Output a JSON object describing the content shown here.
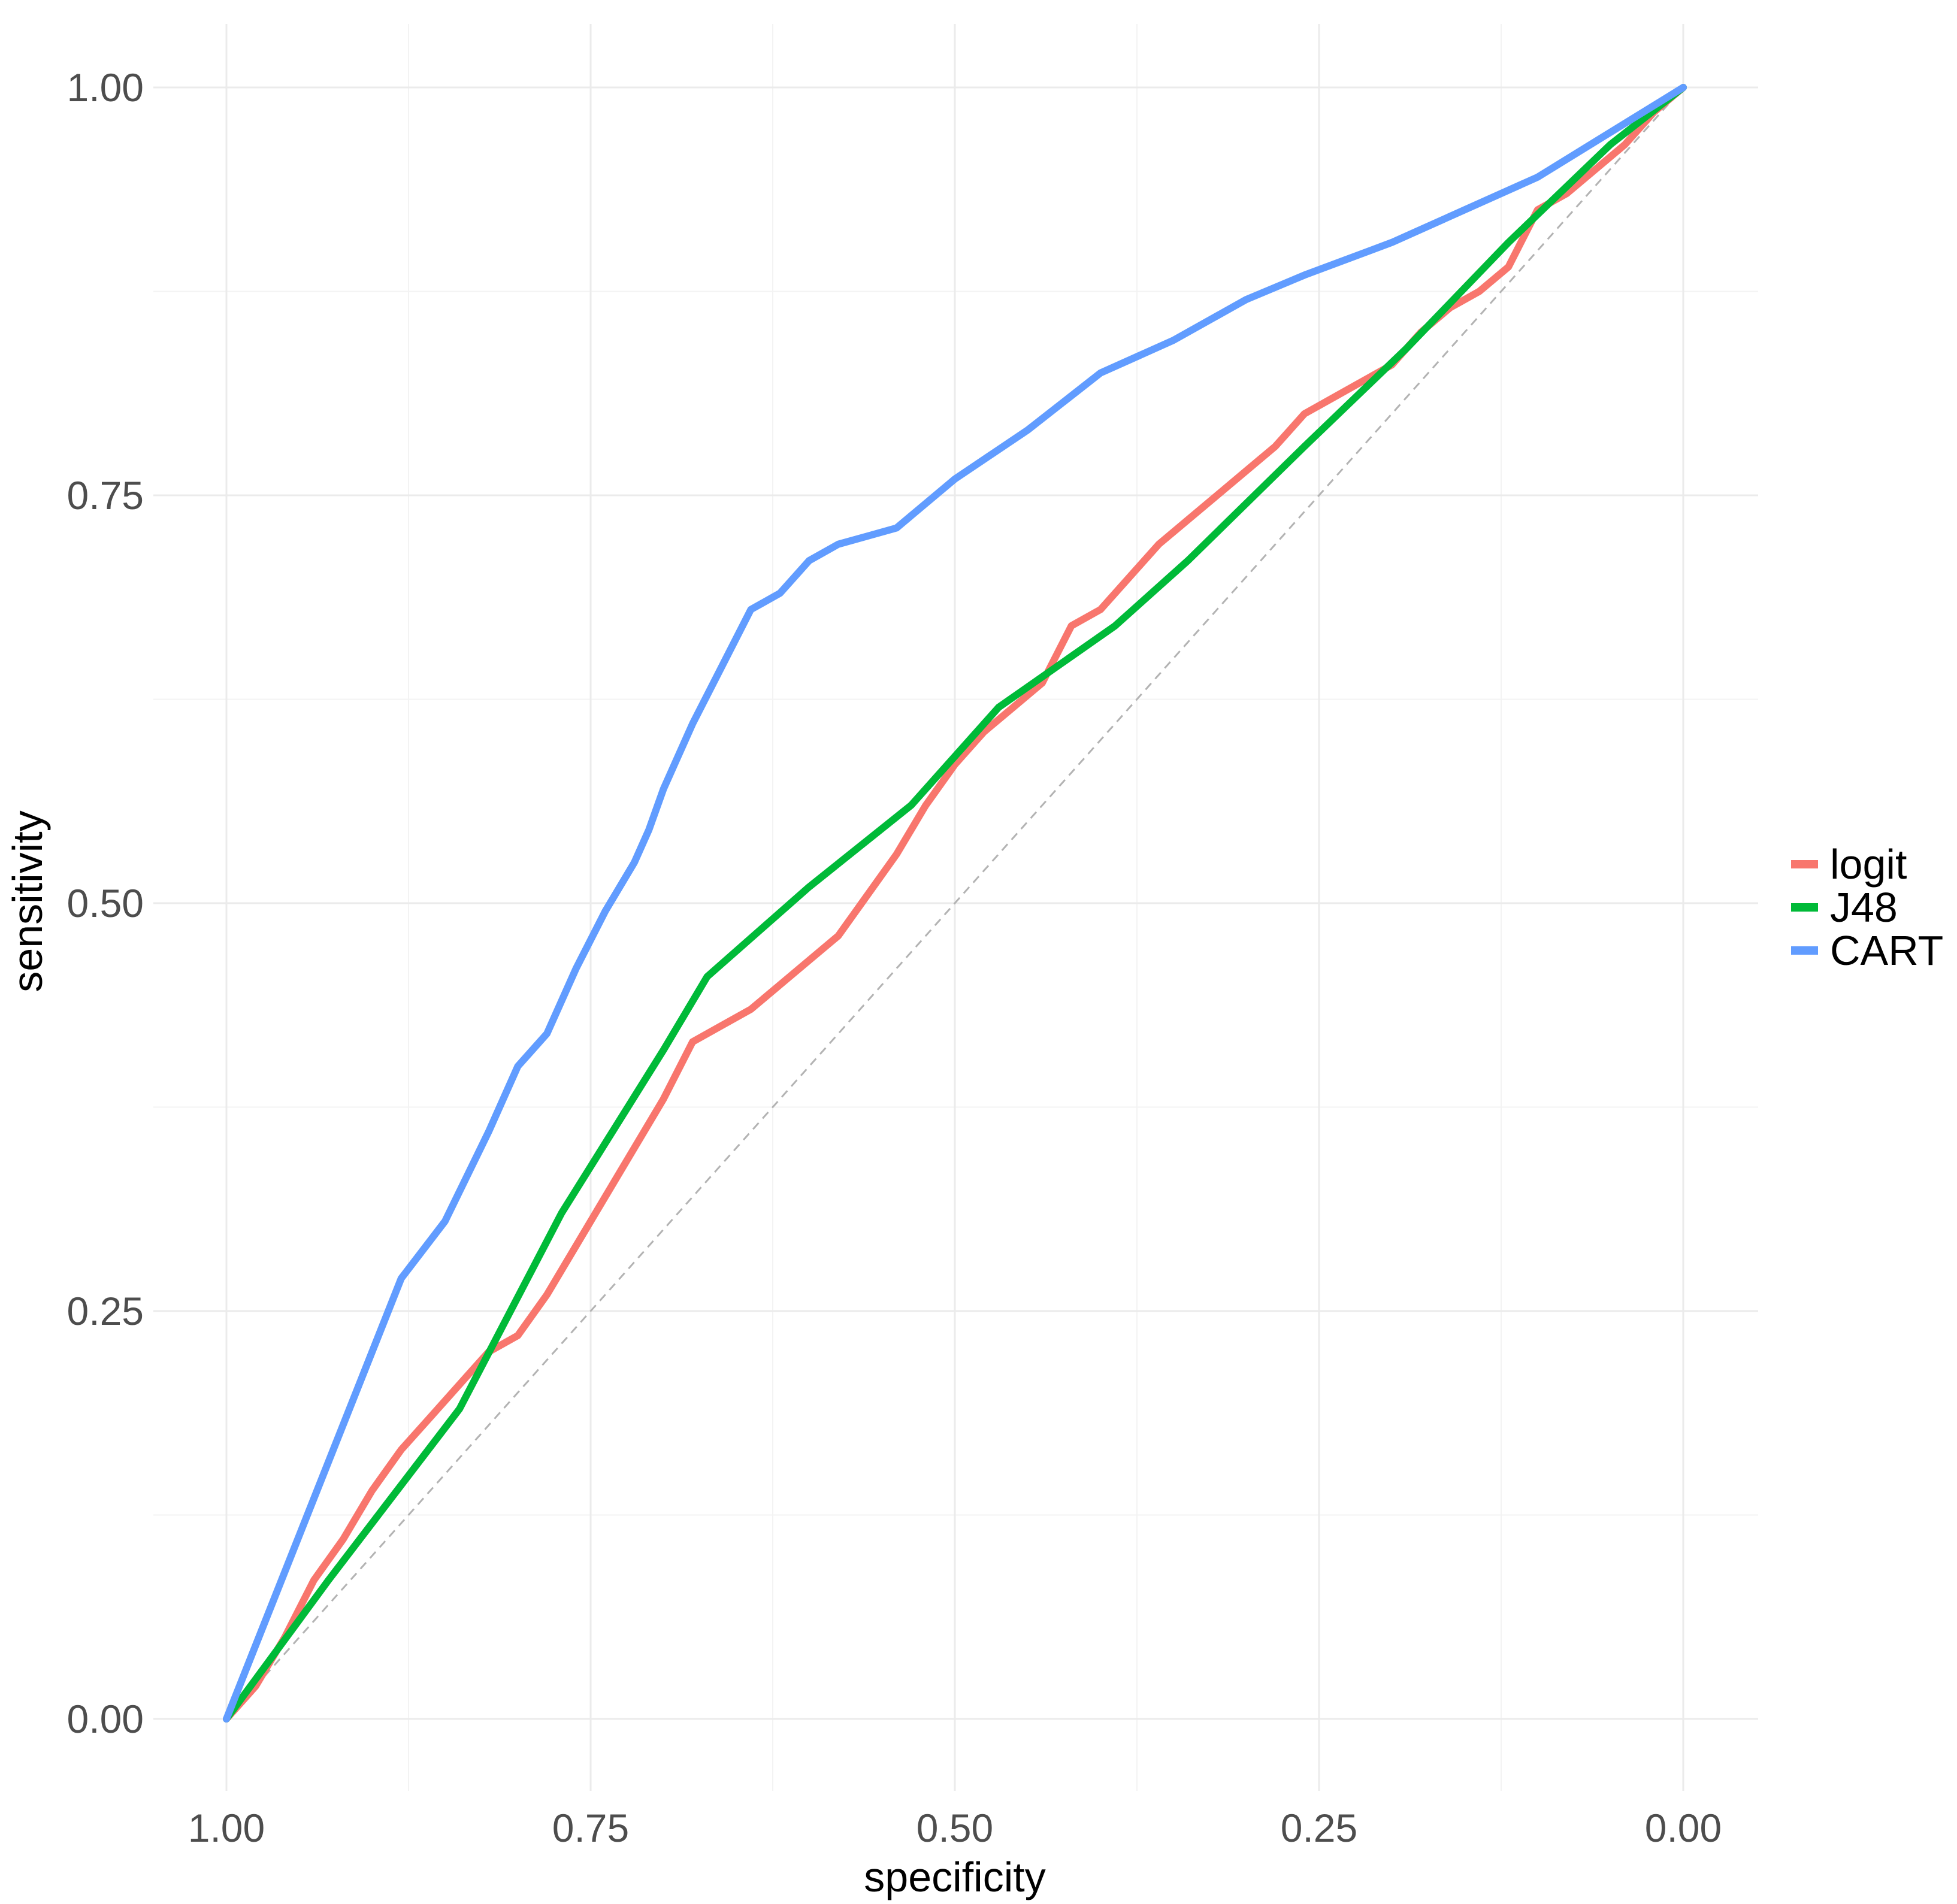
{
  "chart_data": {
    "type": "line",
    "title": "",
    "xlabel": "specificity",
    "ylabel": "sensitivity",
    "x_reversed": true,
    "xlim": [
      1.0,
      0.0
    ],
    "ylim": [
      0.0,
      1.0
    ],
    "x_ticks": [
      "1.00",
      "0.75",
      "0.50",
      "0.25",
      "0.00"
    ],
    "y_ticks": [
      "0.00",
      "0.25",
      "0.50",
      "0.75",
      "1.00"
    ],
    "grid": true,
    "legend_position": "right",
    "reference_line": {
      "from": [
        1.0,
        0.0
      ],
      "to": [
        0.0,
        1.0
      ],
      "style": "dashed",
      "color": "#b3b3b3"
    },
    "series": [
      {
        "name": "logit",
        "color": "#F8766D",
        "points": [
          [
            1.0,
            0.0
          ],
          [
            0.98,
            0.02
          ],
          [
            0.96,
            0.05
          ],
          [
            0.94,
            0.085
          ],
          [
            0.92,
            0.11
          ],
          [
            0.9,
            0.14
          ],
          [
            0.88,
            0.165
          ],
          [
            0.86,
            0.185
          ],
          [
            0.84,
            0.205
          ],
          [
            0.82,
            0.225
          ],
          [
            0.8,
            0.235
          ],
          [
            0.78,
            0.26
          ],
          [
            0.76,
            0.29
          ],
          [
            0.74,
            0.32
          ],
          [
            0.72,
            0.35
          ],
          [
            0.7,
            0.38
          ],
          [
            0.68,
            0.415
          ],
          [
            0.66,
            0.425
          ],
          [
            0.64,
            0.435
          ],
          [
            0.62,
            0.45
          ],
          [
            0.6,
            0.465
          ],
          [
            0.58,
            0.48
          ],
          [
            0.56,
            0.505
          ],
          [
            0.54,
            0.53
          ],
          [
            0.52,
            0.56
          ],
          [
            0.5,
            0.585
          ],
          [
            0.48,
            0.605
          ],
          [
            0.46,
            0.62
          ],
          [
            0.44,
            0.635
          ],
          [
            0.42,
            0.67
          ],
          [
            0.4,
            0.68
          ],
          [
            0.38,
            0.7
          ],
          [
            0.36,
            0.72
          ],
          [
            0.34,
            0.735
          ],
          [
            0.32,
            0.75
          ],
          [
            0.3,
            0.765
          ],
          [
            0.28,
            0.78
          ],
          [
            0.26,
            0.8
          ],
          [
            0.24,
            0.81
          ],
          [
            0.22,
            0.82
          ],
          [
            0.2,
            0.83
          ],
          [
            0.18,
            0.85
          ],
          [
            0.16,
            0.865
          ],
          [
            0.14,
            0.875
          ],
          [
            0.12,
            0.89
          ],
          [
            0.1,
            0.925
          ],
          [
            0.08,
            0.935
          ],
          [
            0.06,
            0.95
          ],
          [
            0.04,
            0.965
          ],
          [
            0.02,
            0.985
          ],
          [
            0.0,
            1.0
          ]
        ]
      },
      {
        "name": "J48",
        "color": "#00BA38",
        "points": [
          [
            1.0,
            0.0
          ],
          [
            0.93,
            0.085
          ],
          [
            0.84,
            0.19
          ],
          [
            0.77,
            0.31
          ],
          [
            0.7,
            0.41
          ],
          [
            0.67,
            0.455
          ],
          [
            0.6,
            0.51
          ],
          [
            0.53,
            0.56
          ],
          [
            0.47,
            0.62
          ],
          [
            0.39,
            0.67
          ],
          [
            0.34,
            0.71
          ],
          [
            0.26,
            0.78
          ],
          [
            0.19,
            0.84
          ],
          [
            0.12,
            0.905
          ],
          [
            0.05,
            0.965
          ],
          [
            0.0,
            1.0
          ]
        ]
      },
      {
        "name": "CART",
        "color": "#619CFF",
        "points": [
          [
            1.0,
            0.0
          ],
          [
            0.88,
            0.27
          ],
          [
            0.85,
            0.305
          ],
          [
            0.82,
            0.36
          ],
          [
            0.8,
            0.4
          ],
          [
            0.78,
            0.42
          ],
          [
            0.76,
            0.46
          ],
          [
            0.74,
            0.495
          ],
          [
            0.72,
            0.525
          ],
          [
            0.71,
            0.545
          ],
          [
            0.7,
            0.57
          ],
          [
            0.68,
            0.61
          ],
          [
            0.66,
            0.645
          ],
          [
            0.64,
            0.68
          ],
          [
            0.62,
            0.69
          ],
          [
            0.6,
            0.71
          ],
          [
            0.58,
            0.72
          ],
          [
            0.56,
            0.725
          ],
          [
            0.54,
            0.73
          ],
          [
            0.5,
            0.76
          ],
          [
            0.45,
            0.79
          ],
          [
            0.4,
            0.825
          ],
          [
            0.35,
            0.845
          ],
          [
            0.3,
            0.87
          ],
          [
            0.26,
            0.885
          ],
          [
            0.2,
            0.905
          ],
          [
            0.1,
            0.945
          ],
          [
            0.0,
            1.0
          ]
        ]
      }
    ]
  }
}
